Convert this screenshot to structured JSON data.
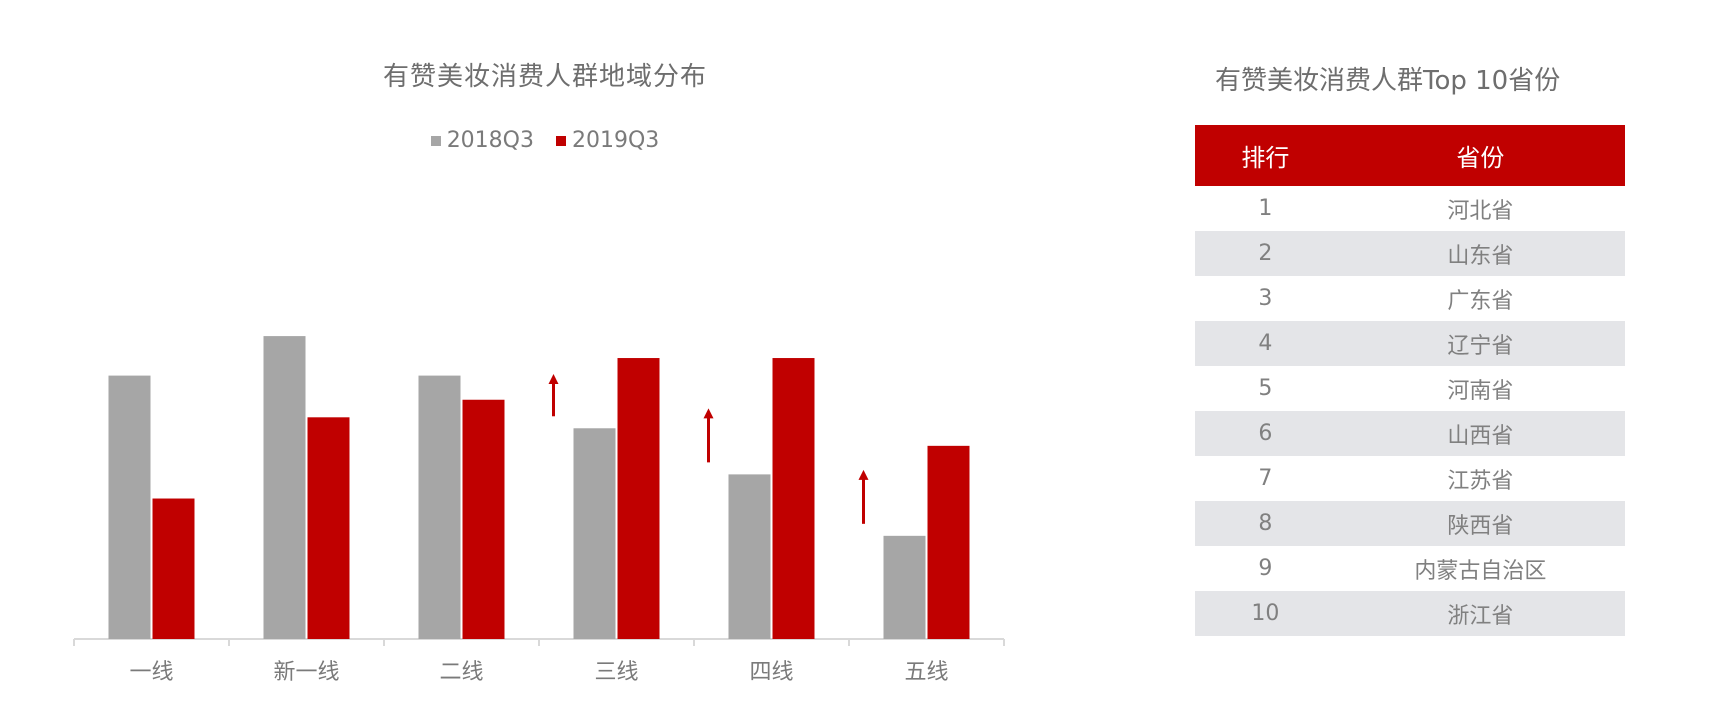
{
  "chart_title": "有赞美妆消费人群地域分布",
  "table_title": "有赞美妆消费人群Top 10省份",
  "colors": {
    "series_2018": "#a6a6a6",
    "series_2019": "#c00000",
    "accent": "#c00000",
    "axis": "#d9d9d9",
    "label": "#7a7a7a"
  },
  "chart_data": {
    "type": "bar",
    "title": "有赞美妆消费人群地域分布",
    "categories": [
      "一线",
      "新一线",
      "二线",
      "三线",
      "四线",
      "五线"
    ],
    "series": [
      {
        "name": "2018Q3",
        "values": [
          60,
          69,
          60,
          48,
          37.5,
          23.5
        ]
      },
      {
        "name": "2019Q3",
        "values": [
          32,
          50.5,
          54.5,
          64,
          64,
          44
        ]
      }
    ],
    "ylim": [
      0,
      100
    ],
    "grid": false,
    "legend_position": "top-center",
    "annotations": [
      {
        "type": "up-arrow",
        "category": "三线"
      },
      {
        "type": "up-arrow",
        "category": "四线"
      },
      {
        "type": "up-arrow",
        "category": "五线"
      }
    ]
  },
  "table": {
    "headers": [
      "排行",
      "省份"
    ],
    "rows": [
      [
        "1",
        "河北省"
      ],
      [
        "2",
        "山东省"
      ],
      [
        "3",
        "广东省"
      ],
      [
        "4",
        "辽宁省"
      ],
      [
        "5",
        "河南省"
      ],
      [
        "6",
        "山西省"
      ],
      [
        "7",
        "江苏省"
      ],
      [
        "8",
        "陕西省"
      ],
      [
        "9",
        "内蒙古自治区"
      ],
      [
        "10",
        "浙江省"
      ]
    ]
  }
}
